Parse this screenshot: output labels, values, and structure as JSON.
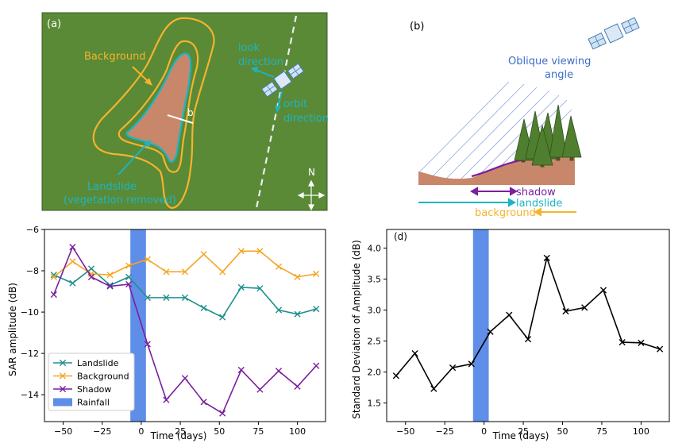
{
  "panels": {
    "a": {
      "label": "(a)",
      "background_label": "Background",
      "look_label_1": "look",
      "look_label_2": "direction",
      "orbit_label_1": "orbit",
      "orbit_label_2": "direction",
      "b_label": "b",
      "landslide_label_1": "Landslide",
      "landslide_label_2": "(vegetation removed)",
      "north_label": "N"
    },
    "b": {
      "label": "(b)",
      "oblique_label_1": "Oblique viewing",
      "oblique_label_2": "angle",
      "shadow_label": "shadow",
      "landslide_label": "landslide",
      "background_label": "background"
    }
  },
  "colors": {
    "map_green": "#5a8a35",
    "landslide_fill": "#c8876a",
    "cyan": "#1cb5c4",
    "orange": "#f5b32e",
    "purple": "#7a1f9e",
    "teal": "#1e8f8c",
    "rainfall": "#5f8ee8",
    "blue_text": "#3c6ec8"
  },
  "chart_data": [
    {
      "type": "line",
      "panel": "",
      "xlabel": "Time (days)",
      "ylabel": "SAR amplitude (dB)",
      "xlim": [
        -62,
        118
      ],
      "ylim": [
        -15.3,
        -6
      ],
      "xticks": [
        -50,
        -25,
        0,
        25,
        50,
        75,
        100
      ],
      "yticks": [
        -6,
        -8,
        -10,
        -12,
        -14
      ],
      "rainfall_span": [
        -7,
        3
      ],
      "legend_position": "lower-left",
      "series": [
        {
          "name": "Landslide",
          "color": "#1e8f8c",
          "x": [
            -56,
            -44,
            -32,
            -20,
            -8,
            4,
            16,
            28,
            40,
            52,
            64,
            76,
            88,
            100,
            112
          ],
          "y": [
            -8.2,
            -8.6,
            -7.9,
            -8.7,
            -8.3,
            -9.3,
            -9.3,
            -9.3,
            -9.8,
            -10.25,
            -8.8,
            -8.85,
            -9.9,
            -10.1,
            -9.85
          ]
        },
        {
          "name": "Background",
          "color": "#f5a623",
          "x": [
            -56,
            -44,
            -32,
            -20,
            -8,
            4,
            16,
            28,
            40,
            52,
            64,
            76,
            88,
            100,
            112
          ],
          "y": [
            -8.3,
            -7.55,
            -8.15,
            -8.2,
            -7.75,
            -7.45,
            -8.05,
            -8.05,
            -7.2,
            -8.05,
            -7.05,
            -7.05,
            -7.8,
            -8.3,
            -8.15
          ]
        },
        {
          "name": "Shadow",
          "color": "#7a1f9e",
          "x": [
            -56,
            -44,
            -32,
            -20,
            -8,
            4,
            16,
            28,
            40,
            52,
            64,
            76,
            88,
            100,
            112
          ],
          "y": [
            -9.15,
            -6.85,
            -8.3,
            -8.75,
            -8.65,
            -11.55,
            -14.25,
            -13.2,
            -14.35,
            -14.9,
            -12.8,
            -13.75,
            -12.85,
            -13.6,
            -12.6
          ]
        }
      ],
      "rainfall_label": "Rainfall"
    },
    {
      "type": "line",
      "panel": "(d)",
      "xlabel": "Time (days)",
      "ylabel": "Standard Deviation of Amplitude (dB)",
      "xlim": [
        -62,
        118
      ],
      "ylim": [
        1.2,
        4.3
      ],
      "xticks": [
        -50,
        -25,
        0,
        25,
        50,
        75,
        100
      ],
      "yticks": [
        1.5,
        2.0,
        2.5,
        3.0,
        3.5,
        4.0
      ],
      "ytick_labels": [
        "1.5",
        "2.0",
        "2.5",
        "3.0",
        "3.5",
        "4.0"
      ],
      "rainfall_span": [
        -7,
        3
      ],
      "series": [
        {
          "name": "",
          "color": "#000000",
          "x": [
            -56,
            -44,
            -32,
            -20,
            -8,
            4,
            16,
            28,
            40,
            52,
            64,
            76,
            88,
            100,
            112
          ],
          "y": [
            1.94,
            2.3,
            1.73,
            2.07,
            2.13,
            2.65,
            2.92,
            2.53,
            3.84,
            2.98,
            3.04,
            3.32,
            2.48,
            2.47,
            2.37
          ]
        }
      ]
    }
  ]
}
